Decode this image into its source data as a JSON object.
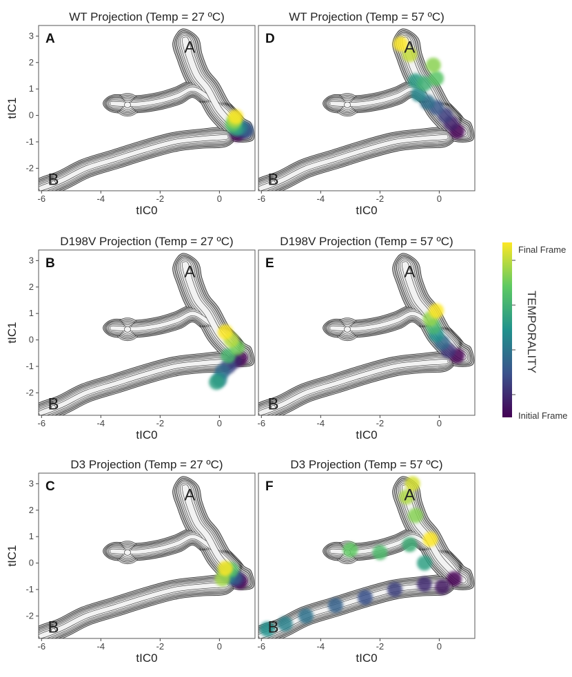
{
  "chart_data": {
    "type": "contour",
    "xlabel": "tIC0",
    "ylabel": "tIC1",
    "xticks": [
      -6,
      -4,
      -2,
      0
    ],
    "yticks": [
      -2,
      -1,
      0,
      1,
      2,
      3
    ],
    "xlim": [
      -6.1,
      1.2
    ],
    "ylim": [
      -2.85,
      3.4
    ],
    "basin_labels": [
      {
        "label": "A",
        "x": -1.0,
        "y": 2.6
      },
      {
        "label": "B",
        "x": -5.6,
        "y": -2.4
      }
    ],
    "colorbar": {
      "title": "TEMPORALITY",
      "top_label": "Final Frame",
      "bottom_label": "Initial Frame",
      "colors": [
        "#fde725",
        "#5ec962",
        "#21918c",
        "#3b528b",
        "#440154"
      ]
    },
    "panels": [
      {
        "letter": "A",
        "title": "WT Projection (Temp = 27 ºC)",
        "trajectory": [
          [
            0.6,
            -0.7
          ],
          [
            0.8,
            -0.6
          ],
          [
            0.9,
            -0.55
          ],
          [
            0.7,
            -0.45
          ],
          [
            0.55,
            -0.5
          ],
          [
            0.45,
            -0.35
          ],
          [
            0.5,
            -0.2
          ],
          [
            0.55,
            -0.05
          ]
        ]
      },
      {
        "letter": "D",
        "title": "WT Projection (Temp = 57 ºC)",
        "trajectory": [
          [
            0.6,
            -0.6
          ],
          [
            0.4,
            -0.3
          ],
          [
            0.2,
            0.0
          ],
          [
            -0.1,
            0.3
          ],
          [
            -0.4,
            0.5
          ],
          [
            -0.7,
            0.8
          ],
          [
            -0.8,
            1.3
          ],
          [
            -0.5,
            1.2
          ],
          [
            -0.1,
            1.4
          ],
          [
            -0.2,
            1.9
          ],
          [
            -1.0,
            2.3
          ],
          [
            -1.3,
            2.7
          ]
        ]
      },
      {
        "letter": "B",
        "title": "D198V Projection (Temp = 27 ºC)",
        "trajectory": [
          [
            0.7,
            -0.7
          ],
          [
            0.5,
            -0.8
          ],
          [
            0.3,
            -1.0
          ],
          [
            0.1,
            -1.2
          ],
          [
            0.0,
            -1.5
          ],
          [
            -0.1,
            -1.6
          ],
          [
            0.3,
            -0.6
          ],
          [
            0.6,
            -0.3
          ],
          [
            0.4,
            0.0
          ],
          [
            0.2,
            0.3
          ]
        ]
      },
      {
        "letter": "E",
        "title": "D198V Projection (Temp = 57 ºC)",
        "trajectory": [
          [
            0.6,
            -0.6
          ],
          [
            0.3,
            -0.4
          ],
          [
            0.1,
            -0.1
          ],
          [
            -0.1,
            0.2
          ],
          [
            -0.2,
            0.5
          ],
          [
            -0.3,
            0.8
          ],
          [
            -0.1,
            1.1
          ]
        ]
      },
      {
        "letter": "C",
        "title": "D3 Projection (Temp = 27 ºC)",
        "trajectory": [
          [
            0.7,
            -0.7
          ],
          [
            0.6,
            -0.6
          ],
          [
            0.5,
            -0.55
          ],
          [
            0.3,
            -0.5
          ],
          [
            0.2,
            -0.3
          ],
          [
            0.4,
            -0.25
          ],
          [
            0.1,
            -0.6
          ],
          [
            0.2,
            -0.2
          ]
        ]
      },
      {
        "letter": "F",
        "title": "D3 Projection (Temp = 57 ºC)",
        "trajectory": [
          [
            0.5,
            -0.6
          ],
          [
            0.1,
            -0.9
          ],
          [
            -0.5,
            -0.8
          ],
          [
            -1.5,
            -1.0
          ],
          [
            -2.5,
            -1.3
          ],
          [
            -3.5,
            -1.6
          ],
          [
            -4.5,
            -2.0
          ],
          [
            -5.2,
            -2.3
          ],
          [
            -5.8,
            -2.5
          ],
          [
            -0.5,
            0.0
          ],
          [
            -1.0,
            0.7
          ],
          [
            -2.0,
            0.4
          ],
          [
            -3.0,
            0.5
          ],
          [
            -0.8,
            1.8
          ],
          [
            -1.1,
            2.5
          ],
          [
            -0.9,
            3.0
          ],
          [
            -0.3,
            0.9
          ]
        ]
      }
    ]
  }
}
